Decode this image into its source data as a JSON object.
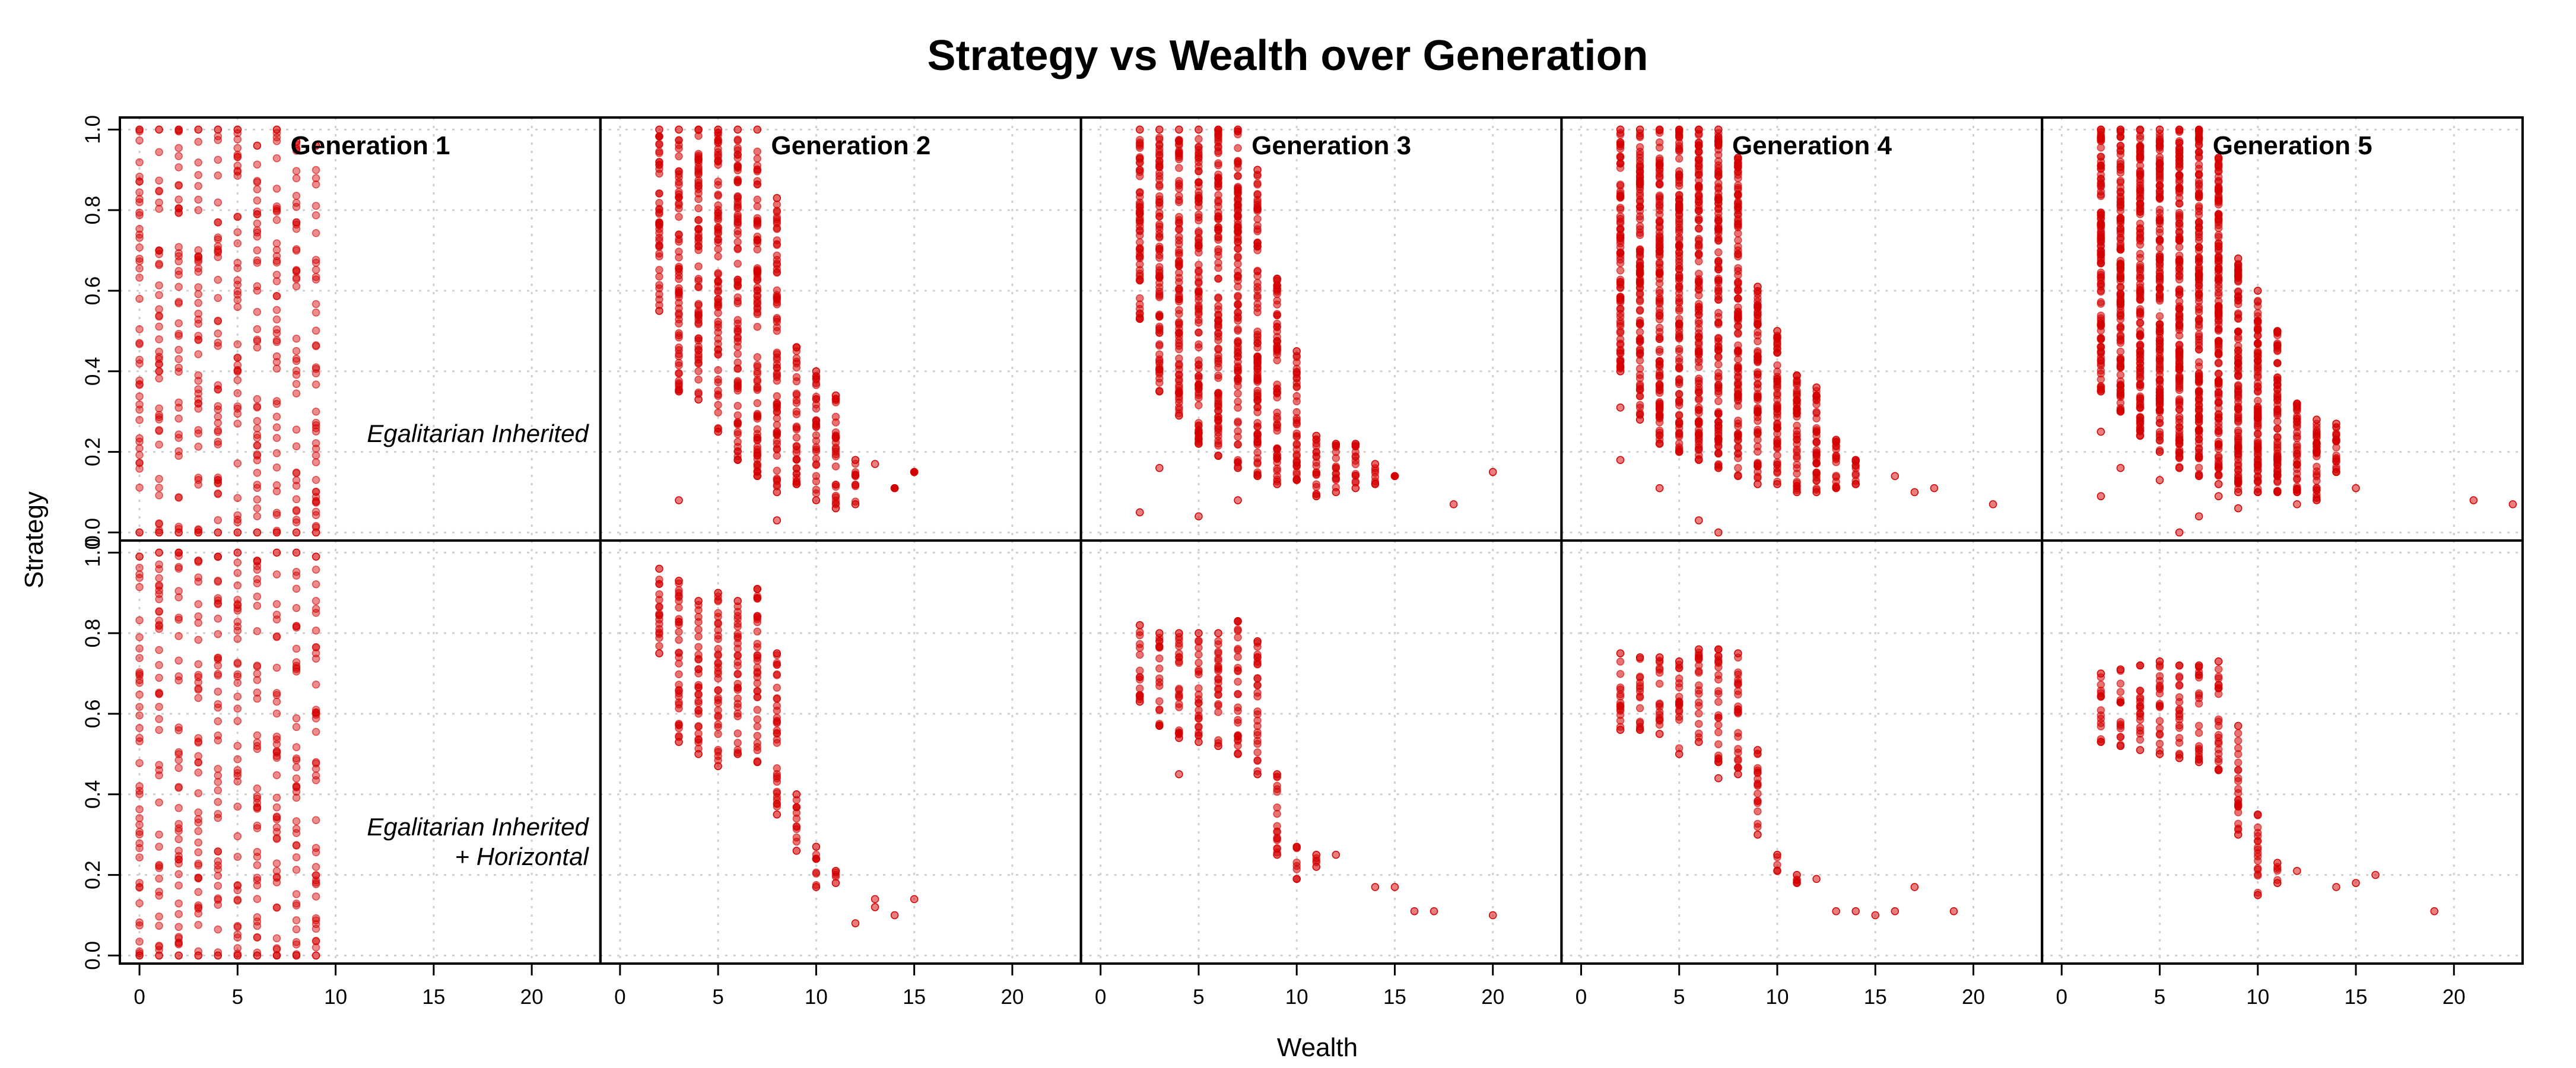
{
  "chart_data": {
    "type": "scatter",
    "title": "Strategy vs Wealth over Generation",
    "xlabel": "Wealth",
    "ylabel": "Strategy",
    "xlim": [
      -1,
      23.5
    ],
    "ylim": [
      -0.02,
      1.03
    ],
    "x_ticks": [
      "0",
      "5",
      "10",
      "15",
      "20"
    ],
    "y_ticks": [
      "0.0",
      "0.2",
      "0.4",
      "0.6",
      "0.8",
      "1.0"
    ],
    "grid": true,
    "point_color": "#d40000",
    "columns": [
      "Generation 1",
      "Generation 2",
      "Generation 3",
      "Generation 4",
      "Generation 5"
    ],
    "rows": [
      {
        "label_lines": [
          "Egalitarian Inherited"
        ]
      },
      {
        "label_lines": [
          "Egalitarian Inherited",
          "+ Horizontal"
        ]
      }
    ],
    "panels": [
      {
        "row": 0,
        "col": 0,
        "columns": [
          {
            "x": 0,
            "lo": 0.0,
            "hi": 1.0
          },
          {
            "x": 1,
            "lo": 0.0,
            "hi": 1.0
          },
          {
            "x": 2,
            "lo": 0.0,
            "hi": 1.0
          },
          {
            "x": 3,
            "lo": 0.0,
            "hi": 1.0
          },
          {
            "x": 4,
            "lo": 0.0,
            "hi": 1.0
          },
          {
            "x": 5,
            "lo": 0.0,
            "hi": 1.0
          },
          {
            "x": 6,
            "lo": 0.0,
            "hi": 0.96
          },
          {
            "x": 7,
            "lo": 0.0,
            "hi": 1.0
          },
          {
            "x": 8,
            "lo": 0.0,
            "hi": 0.97
          },
          {
            "x": 9,
            "lo": 0.0,
            "hi": 0.96
          }
        ]
      },
      {
        "row": 0,
        "col": 1,
        "columns": [
          {
            "x": 2,
            "lo": 0.55,
            "hi": 1.0
          },
          {
            "x": 3,
            "lo": 0.35,
            "hi": 1.0
          },
          {
            "x": 4,
            "lo": 0.33,
            "hi": 1.0
          },
          {
            "x": 5,
            "lo": 0.25,
            "hi": 1.0
          },
          {
            "x": 6,
            "lo": 0.18,
            "hi": 1.0
          },
          {
            "x": 7,
            "lo": 0.14,
            "hi": 1.0
          },
          {
            "x": 8,
            "lo": 0.1,
            "hi": 0.83
          },
          {
            "x": 9,
            "lo": 0.12,
            "hi": 0.46
          },
          {
            "x": 10,
            "lo": 0.08,
            "hi": 0.4
          },
          {
            "x": 11,
            "lo": 0.06,
            "hi": 0.34
          },
          {
            "x": 12,
            "lo": 0.07,
            "hi": 0.18
          },
          {
            "x": 14,
            "lo": 0.11,
            "hi": 0.11
          },
          {
            "x": 15,
            "lo": 0.15,
            "hi": 0.15
          }
        ],
        "outliers": [
          [
            3,
            0.08
          ],
          [
            8,
            0.03
          ],
          [
            9,
            0.12
          ],
          [
            13,
            0.17
          ]
        ]
      },
      {
        "row": 0,
        "col": 2,
        "columns": [
          {
            "x": 2,
            "lo": 0.53,
            "hi": 1.0
          },
          {
            "x": 3,
            "lo": 0.35,
            "hi": 1.0
          },
          {
            "x": 4,
            "lo": 0.29,
            "hi": 1.0
          },
          {
            "x": 5,
            "lo": 0.22,
            "hi": 1.0
          },
          {
            "x": 6,
            "lo": 0.19,
            "hi": 1.0
          },
          {
            "x": 7,
            "lo": 0.16,
            "hi": 1.0
          },
          {
            "x": 8,
            "lo": 0.14,
            "hi": 0.9
          },
          {
            "x": 9,
            "lo": 0.12,
            "hi": 0.63
          },
          {
            "x": 10,
            "lo": 0.13,
            "hi": 0.45
          },
          {
            "x": 11,
            "lo": 0.09,
            "hi": 0.24
          },
          {
            "x": 12,
            "lo": 0.1,
            "hi": 0.22
          },
          {
            "x": 13,
            "lo": 0.11,
            "hi": 0.22
          },
          {
            "x": 14,
            "lo": 0.12,
            "hi": 0.17
          },
          {
            "x": 15,
            "lo": 0.14,
            "hi": 0.14
          }
        ],
        "outliers": [
          [
            2,
            0.05
          ],
          [
            3,
            0.16
          ],
          [
            5,
            0.04
          ],
          [
            7,
            0.08
          ],
          [
            18,
            0.07
          ],
          [
            20,
            0.15
          ]
        ]
      },
      {
        "row": 0,
        "col": 3,
        "columns": [
          {
            "x": 2,
            "lo": 0.4,
            "hi": 1.0
          },
          {
            "x": 3,
            "lo": 0.28,
            "hi": 1.0
          },
          {
            "x": 4,
            "lo": 0.22,
            "hi": 1.0
          },
          {
            "x": 5,
            "lo": 0.2,
            "hi": 1.0
          },
          {
            "x": 6,
            "lo": 0.18,
            "hi": 1.0
          },
          {
            "x": 7,
            "lo": 0.16,
            "hi": 1.0
          },
          {
            "x": 8,
            "lo": 0.14,
            "hi": 0.93
          },
          {
            "x": 9,
            "lo": 0.12,
            "hi": 0.61
          },
          {
            "x": 10,
            "lo": 0.12,
            "hi": 0.5
          },
          {
            "x": 11,
            "lo": 0.1,
            "hi": 0.39
          },
          {
            "x": 12,
            "lo": 0.1,
            "hi": 0.36
          },
          {
            "x": 13,
            "lo": 0.11,
            "hi": 0.23
          },
          {
            "x": 14,
            "lo": 0.12,
            "hi": 0.18
          }
        ],
        "outliers": [
          [
            2,
            0.18
          ],
          [
            2,
            0.31
          ],
          [
            4,
            0.11
          ],
          [
            6,
            0.03
          ],
          [
            7,
            0.0
          ],
          [
            16,
            0.14
          ],
          [
            17,
            0.1
          ],
          [
            18,
            0.11
          ],
          [
            21,
            0.07
          ],
          [
            14,
            0.12
          ]
        ]
      },
      {
        "row": 0,
        "col": 4,
        "columns": [
          {
            "x": 2,
            "lo": 0.35,
            "hi": 1.0
          },
          {
            "x": 3,
            "lo": 0.3,
            "hi": 1.0
          },
          {
            "x": 4,
            "lo": 0.24,
            "hi": 1.0
          },
          {
            "x": 5,
            "lo": 0.2,
            "hi": 1.0
          },
          {
            "x": 6,
            "lo": 0.16,
            "hi": 1.0
          },
          {
            "x": 7,
            "lo": 0.14,
            "hi": 1.0
          },
          {
            "x": 8,
            "lo": 0.12,
            "hi": 0.93
          },
          {
            "x": 9,
            "lo": 0.1,
            "hi": 0.68
          },
          {
            "x": 10,
            "lo": 0.1,
            "hi": 0.6
          },
          {
            "x": 11,
            "lo": 0.1,
            "hi": 0.5
          },
          {
            "x": 12,
            "lo": 0.1,
            "hi": 0.32
          },
          {
            "x": 13,
            "lo": 0.08,
            "hi": 0.28
          },
          {
            "x": 14,
            "lo": 0.15,
            "hi": 0.27
          }
        ],
        "outliers": [
          [
            2,
            0.09
          ],
          [
            2,
            0.25
          ],
          [
            3,
            0.16
          ],
          [
            5,
            0.13
          ],
          [
            6,
            0.0
          ],
          [
            7,
            0.04
          ],
          [
            8,
            0.09
          ],
          [
            9,
            0.06
          ],
          [
            15,
            0.11
          ],
          [
            21,
            0.08
          ],
          [
            23,
            0.07
          ],
          [
            12,
            0.07
          ]
        ]
      },
      {
        "row": 1,
        "col": 0,
        "columns": [
          {
            "x": 0,
            "lo": 0.0,
            "hi": 0.99
          },
          {
            "x": 1,
            "lo": 0.0,
            "hi": 1.0
          },
          {
            "x": 2,
            "lo": 0.0,
            "hi": 1.0
          },
          {
            "x": 3,
            "lo": 0.0,
            "hi": 0.98
          },
          {
            "x": 4,
            "lo": 0.0,
            "hi": 0.99
          },
          {
            "x": 5,
            "lo": 0.0,
            "hi": 1.0
          },
          {
            "x": 6,
            "lo": 0.0,
            "hi": 0.98
          },
          {
            "x": 7,
            "lo": 0.0,
            "hi": 1.0
          },
          {
            "x": 8,
            "lo": 0.0,
            "hi": 1.0
          },
          {
            "x": 9,
            "lo": 0.0,
            "hi": 0.99
          }
        ]
      },
      {
        "row": 1,
        "col": 1,
        "columns": [
          {
            "x": 2,
            "lo": 0.75,
            "hi": 0.96
          },
          {
            "x": 3,
            "lo": 0.53,
            "hi": 0.93
          },
          {
            "x": 4,
            "lo": 0.5,
            "hi": 0.88
          },
          {
            "x": 5,
            "lo": 0.47,
            "hi": 0.9
          },
          {
            "x": 6,
            "lo": 0.5,
            "hi": 0.88
          },
          {
            "x": 7,
            "lo": 0.48,
            "hi": 0.91
          },
          {
            "x": 8,
            "lo": 0.35,
            "hi": 0.75
          },
          {
            "x": 9,
            "lo": 0.26,
            "hi": 0.4
          },
          {
            "x": 10,
            "lo": 0.17,
            "hi": 0.27
          },
          {
            "x": 11,
            "lo": 0.18,
            "hi": 0.21
          }
        ],
        "outliers": [
          [
            12,
            0.08
          ],
          [
            13,
            0.12
          ],
          [
            13,
            0.14
          ],
          [
            14,
            0.1
          ],
          [
            15,
            0.14
          ]
        ]
      },
      {
        "row": 1,
        "col": 2,
        "columns": [
          {
            "x": 2,
            "lo": 0.63,
            "hi": 0.82
          },
          {
            "x": 3,
            "lo": 0.57,
            "hi": 0.8
          },
          {
            "x": 4,
            "lo": 0.54,
            "hi": 0.8
          },
          {
            "x": 5,
            "lo": 0.53,
            "hi": 0.8
          },
          {
            "x": 6,
            "lo": 0.52,
            "hi": 0.8
          },
          {
            "x": 7,
            "lo": 0.5,
            "hi": 0.83
          },
          {
            "x": 8,
            "lo": 0.45,
            "hi": 0.78
          },
          {
            "x": 9,
            "lo": 0.25,
            "hi": 0.45
          },
          {
            "x": 10,
            "lo": 0.19,
            "hi": 0.27
          },
          {
            "x": 11,
            "lo": 0.22,
            "hi": 0.25
          }
        ],
        "outliers": [
          [
            4,
            0.45
          ],
          [
            12,
            0.25
          ],
          [
            14,
            0.17
          ],
          [
            15,
            0.17
          ],
          [
            16,
            0.11
          ],
          [
            17,
            0.11
          ],
          [
            20,
            0.1
          ]
        ]
      },
      {
        "row": 1,
        "col": 3,
        "columns": [
          {
            "x": 2,
            "lo": 0.56,
            "hi": 0.75
          },
          {
            "x": 3,
            "lo": 0.56,
            "hi": 0.74
          },
          {
            "x": 4,
            "lo": 0.55,
            "hi": 0.74
          },
          {
            "x": 5,
            "lo": 0.5,
            "hi": 0.73
          },
          {
            "x": 6,
            "lo": 0.53,
            "hi": 0.76
          },
          {
            "x": 7,
            "lo": 0.48,
            "hi": 0.76
          },
          {
            "x": 8,
            "lo": 0.45,
            "hi": 0.75
          },
          {
            "x": 9,
            "lo": 0.3,
            "hi": 0.51
          },
          {
            "x": 10,
            "lo": 0.21,
            "hi": 0.25
          },
          {
            "x": 11,
            "lo": 0.18,
            "hi": 0.2
          }
        ],
        "outliers": [
          [
            7,
            0.44
          ],
          [
            12,
            0.19
          ],
          [
            13,
            0.11
          ],
          [
            14,
            0.11
          ],
          [
            15,
            0.1
          ],
          [
            16,
            0.11
          ],
          [
            17,
            0.17
          ],
          [
            19,
            0.11
          ]
        ]
      },
      {
        "row": 1,
        "col": 4,
        "columns": [
          {
            "x": 2,
            "lo": 0.53,
            "hi": 0.7
          },
          {
            "x": 3,
            "lo": 0.52,
            "hi": 0.71
          },
          {
            "x": 4,
            "lo": 0.51,
            "hi": 0.72
          },
          {
            "x": 5,
            "lo": 0.5,
            "hi": 0.73
          },
          {
            "x": 6,
            "lo": 0.49,
            "hi": 0.72
          },
          {
            "x": 7,
            "lo": 0.48,
            "hi": 0.72
          },
          {
            "x": 8,
            "lo": 0.46,
            "hi": 0.73
          },
          {
            "x": 9,
            "lo": 0.3,
            "hi": 0.57
          },
          {
            "x": 10,
            "lo": 0.15,
            "hi": 0.35
          },
          {
            "x": 11,
            "lo": 0.18,
            "hi": 0.23
          }
        ],
        "outliers": [
          [
            12,
            0.21
          ],
          [
            14,
            0.17
          ],
          [
            15,
            0.18
          ],
          [
            16,
            0.2
          ],
          [
            19,
            0.11
          ]
        ]
      }
    ]
  }
}
